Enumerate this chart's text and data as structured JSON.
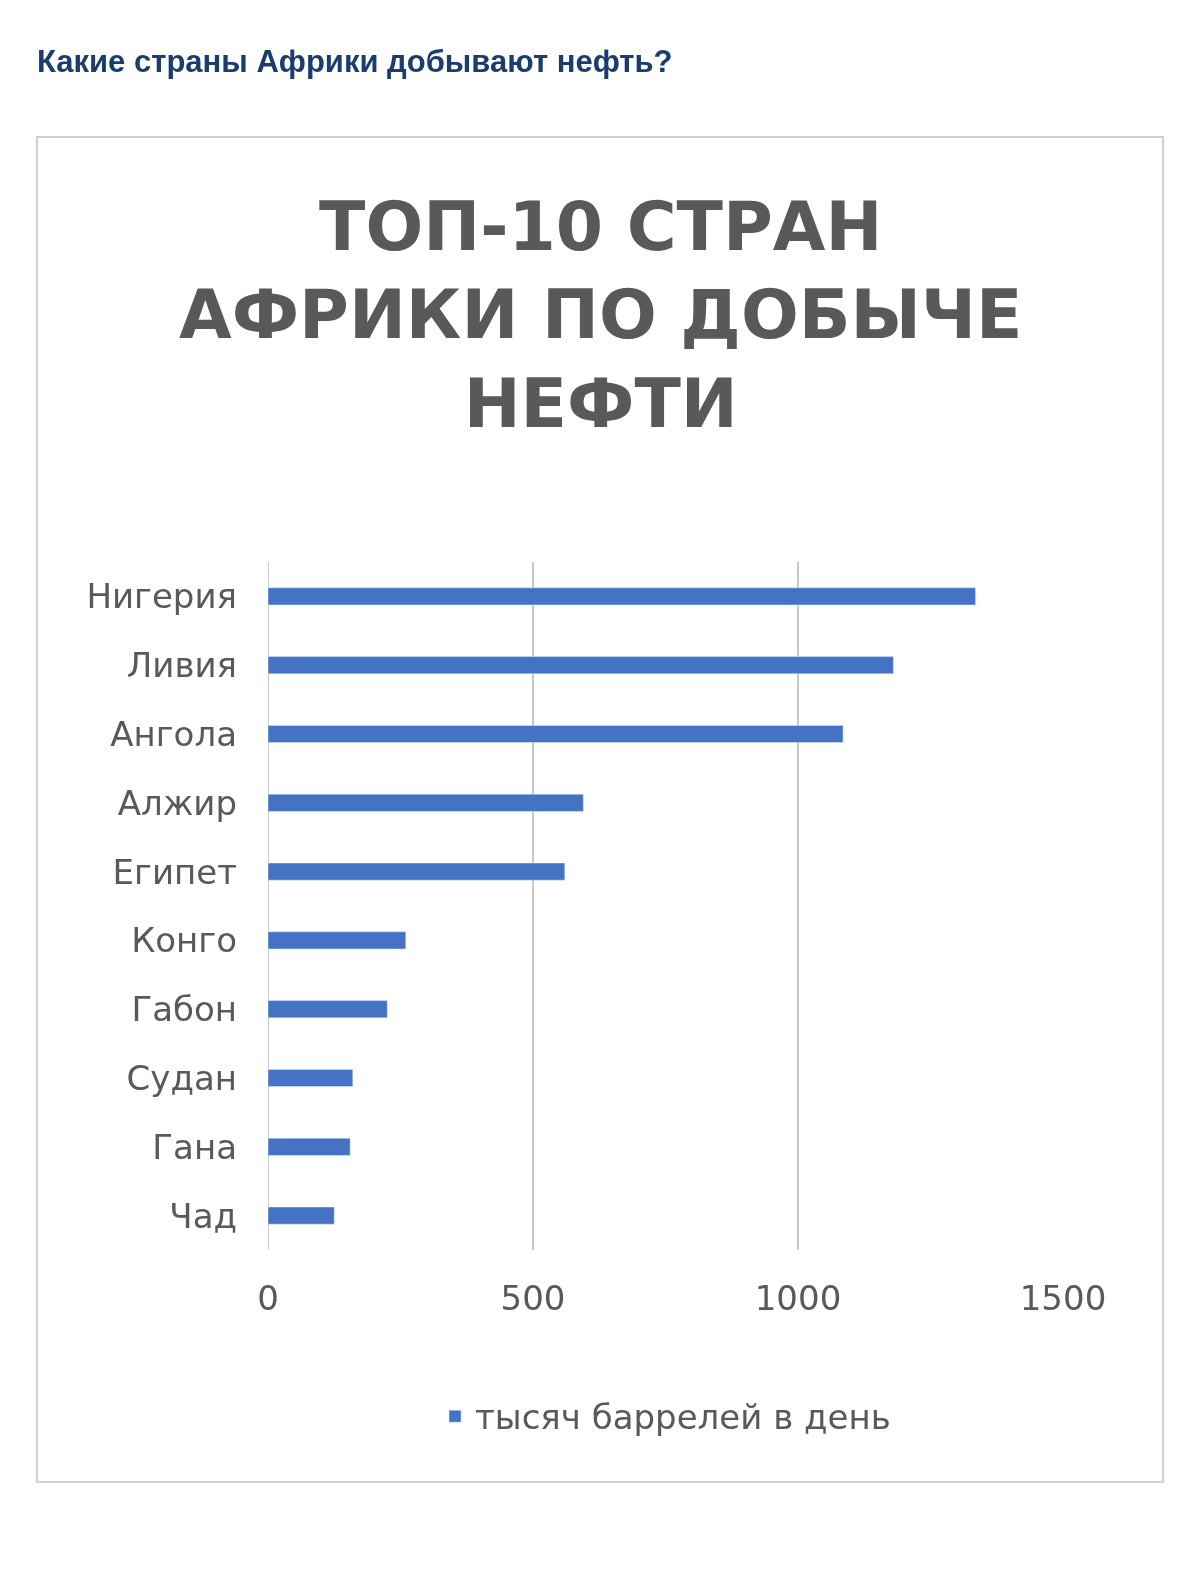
{
  "chart_data": {
    "type": "bar",
    "orientation": "horizontal",
    "title": "Какие страны Африки добывают нефть?",
    "subtitle": "ТОП-10 СТРАН АФРИКИ ПО ДОБЫЧЕ НЕФТИ",
    "categories": [
      "Нигерия",
      "Ливия",
      "Ангола",
      "Алжир",
      "Египет",
      "Конго",
      "Габон",
      "Судан",
      "Гана",
      "Чад"
    ],
    "series": [
      {
        "name": "тысяч баррелей в день",
        "color": "#4472c4",
        "values": [
          1335,
          1180,
          1085,
          595,
          560,
          260,
          225,
          160,
          155,
          125
        ]
      }
    ],
    "xlim": [
      0,
      1500
    ],
    "xticks": [
      0,
      500,
      1000,
      1500
    ],
    "grid": "x",
    "legend": "bottom"
  }
}
